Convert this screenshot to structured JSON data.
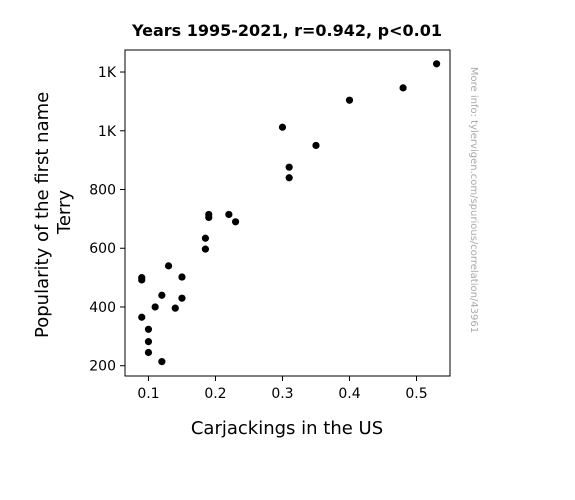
{
  "chart_data": {
    "type": "scatter",
    "title": "Years 1995-2021, r=0.942, p<0.01",
    "xlabel": "Carjackings in the US",
    "ylabel_lines": [
      "Popularity of the first name",
      "Terry"
    ],
    "xlim": [
      0.065,
      0.55
    ],
    "ylim": [
      165,
      1275
    ],
    "x_ticks": [
      {
        "value": 0.1,
        "label": "0.1"
      },
      {
        "value": 0.2,
        "label": "0.2"
      },
      {
        "value": 0.3,
        "label": "0.3"
      },
      {
        "value": 0.4,
        "label": "0.4"
      },
      {
        "value": 0.5,
        "label": "0.5"
      }
    ],
    "y_ticks": [
      {
        "value": 200,
        "label": "200"
      },
      {
        "value": 400,
        "label": "400"
      },
      {
        "value": 600,
        "label": "600"
      },
      {
        "value": 800,
        "label": "800"
      },
      {
        "value": 1000,
        "label": "1K"
      },
      {
        "value": 1200,
        "label": "1K"
      }
    ],
    "points": [
      {
        "x": 0.53,
        "y": 1228
      },
      {
        "x": 0.48,
        "y": 1146
      },
      {
        "x": 0.4,
        "y": 1104
      },
      {
        "x": 0.3,
        "y": 1012
      },
      {
        "x": 0.35,
        "y": 950
      },
      {
        "x": 0.31,
        "y": 876
      },
      {
        "x": 0.31,
        "y": 840
      },
      {
        "x": 0.19,
        "y": 715
      },
      {
        "x": 0.19,
        "y": 705
      },
      {
        "x": 0.22,
        "y": 715
      },
      {
        "x": 0.23,
        "y": 690
      },
      {
        "x": 0.185,
        "y": 634
      },
      {
        "x": 0.185,
        "y": 597
      },
      {
        "x": 0.13,
        "y": 540
      },
      {
        "x": 0.15,
        "y": 502
      },
      {
        "x": 0.09,
        "y": 500
      },
      {
        "x": 0.09,
        "y": 492
      },
      {
        "x": 0.12,
        "y": 440
      },
      {
        "x": 0.15,
        "y": 430
      },
      {
        "x": 0.11,
        "y": 400
      },
      {
        "x": 0.14,
        "y": 396
      },
      {
        "x": 0.09,
        "y": 365
      },
      {
        "x": 0.1,
        "y": 324
      },
      {
        "x": 0.1,
        "y": 282
      },
      {
        "x": 0.1,
        "y": 245
      },
      {
        "x": 0.12,
        "y": 214
      }
    ],
    "marker_color": "#000000",
    "grid": false
  },
  "watermark": "More info: tylervigen.com/spurious/correlation/43961"
}
